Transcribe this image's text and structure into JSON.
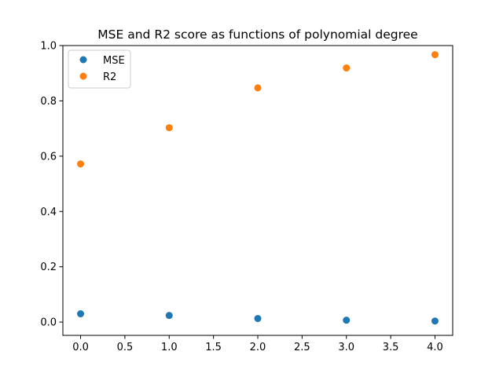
{
  "chart_data": {
    "type": "scatter",
    "title": "MSE and R2 score as functions of polynomial degree",
    "xlabel": "",
    "ylabel": "",
    "xlim": [
      -0.2,
      4.2
    ],
    "ylim": [
      -0.048,
      1.0
    ],
    "xticks": [
      0.0,
      0.5,
      1.0,
      1.5,
      2.0,
      2.5,
      3.0,
      3.5,
      4.0
    ],
    "xtick_labels": [
      "0.0",
      "0.5",
      "1.0",
      "1.5",
      "2.0",
      "2.5",
      "3.0",
      "3.5",
      "4.0"
    ],
    "yticks": [
      0.0,
      0.2,
      0.4,
      0.6,
      0.8,
      1.0
    ],
    "ytick_labels": [
      "0.0",
      "0.2",
      "0.4",
      "0.6",
      "0.8",
      "1.0"
    ],
    "grid": false,
    "legend_position": "upper-left",
    "series": [
      {
        "name": "MSE",
        "color": "#1f77b4",
        "x": [
          0,
          1,
          2,
          3,
          4
        ],
        "y": [
          0.03,
          0.024,
          0.013,
          0.007,
          0.004
        ]
      },
      {
        "name": "R2",
        "color": "#ff7f0e",
        "x": [
          0,
          1,
          2,
          3,
          4
        ],
        "y": [
          0.572,
          0.703,
          0.847,
          0.919,
          0.967
        ]
      }
    ]
  }
}
